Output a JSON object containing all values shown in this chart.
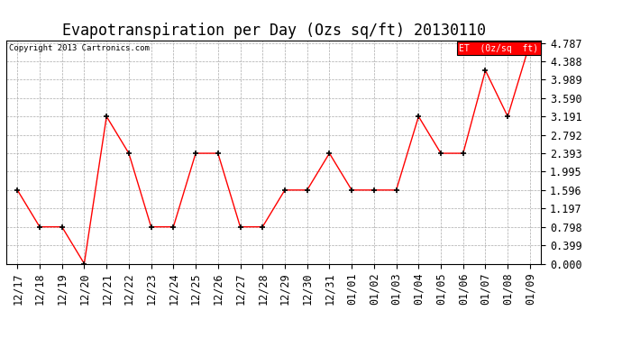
{
  "title": "Evapotranspiration per Day (Ozs sq/ft) 20130110",
  "copyright": "Copyright 2013 Cartronics.com",
  "legend_label": "ET  (0z/sq  ft)",
  "x_labels": [
    "12/17",
    "12/18",
    "12/19",
    "12/20",
    "12/21",
    "12/22",
    "12/23",
    "12/24",
    "12/25",
    "12/26",
    "12/27",
    "12/28",
    "12/29",
    "12/30",
    "12/31",
    "01/01",
    "01/02",
    "01/03",
    "01/04",
    "01/05",
    "01/06",
    "01/07",
    "01/08",
    "01/09"
  ],
  "y_values": [
    1.596,
    0.798,
    0.798,
    0.0,
    3.191,
    2.393,
    0.798,
    0.798,
    2.393,
    2.393,
    0.798,
    0.798,
    1.596,
    1.596,
    2.393,
    1.596,
    1.596,
    1.596,
    3.191,
    2.393,
    2.393,
    4.189,
    3.191,
    4.787
  ],
  "line_color": "red",
  "marker_color": "black",
  "background_color": "#ffffff",
  "grid_color": "#aaaaaa",
  "ylim": [
    0.0,
    4.787
  ],
  "yticks": [
    0.0,
    0.399,
    0.798,
    1.197,
    1.596,
    1.995,
    2.393,
    2.792,
    3.191,
    3.59,
    3.989,
    4.388,
    4.787
  ],
  "title_fontsize": 12,
  "tick_fontsize": 8.5,
  "legend_bg": "red",
  "legend_text_color": "white"
}
